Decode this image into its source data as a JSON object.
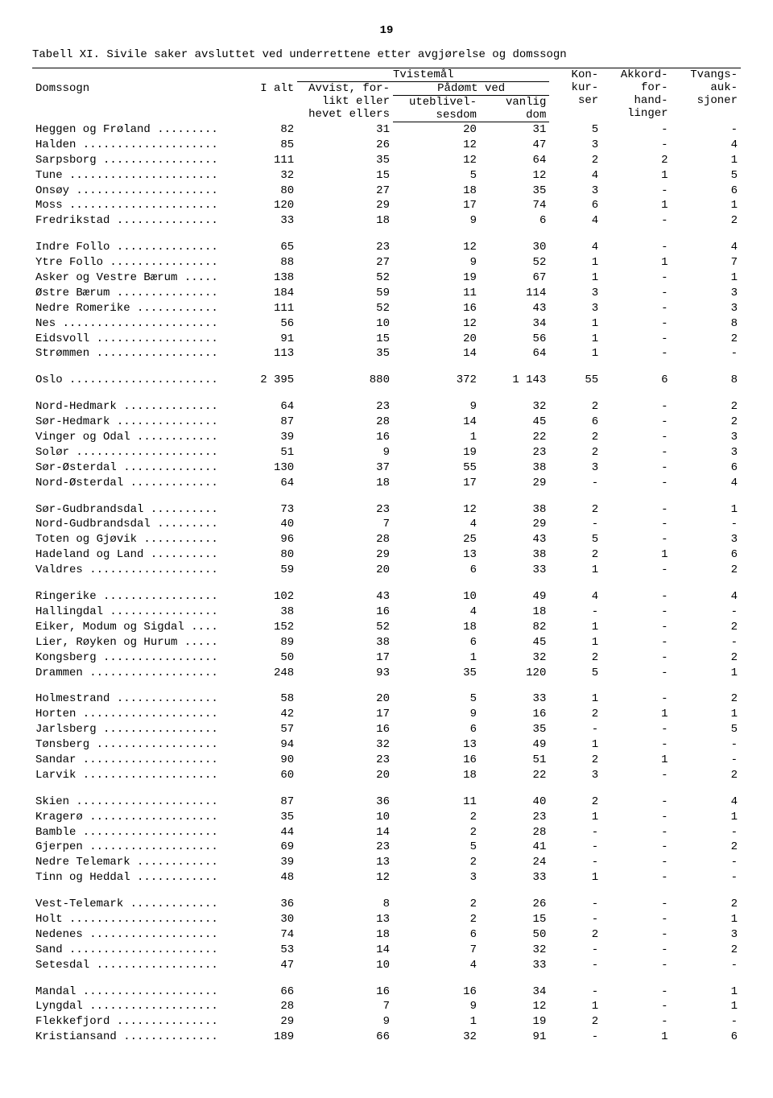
{
  "page_number": "19",
  "title": "Tabell XI.  Sivile saker avsluttet ved underrettene etter avgjørelse og domssogn",
  "headers": {
    "domssogn": "Domssogn",
    "i_alt": "I alt",
    "tvistemal": "Tvistemål",
    "avvist": "Avvist, for-\nlikt eller\nhevet ellers",
    "padomt_ved": "Pådømt ved",
    "utebliv": "uteblivel-\nsesdom",
    "vanlig": "vanlig\ndom",
    "konkurser": "Kon-\nkur-\nser",
    "akkord": "Akkord-\nfor-\nhand-\nlinger",
    "tvangs": "Tvangs-\nauk-\nsjoner"
  },
  "groups": [
    [
      {
        "name": "Heggen og Frøland",
        "v": [
          "82",
          "31",
          "20",
          "31",
          "5",
          "-",
          "-"
        ]
      },
      {
        "name": "Halden",
        "v": [
          "85",
          "26",
          "12",
          "47",
          "3",
          "-",
          "4"
        ]
      },
      {
        "name": "Sarpsborg",
        "v": [
          "111",
          "35",
          "12",
          "64",
          "2",
          "2",
          "1"
        ]
      },
      {
        "name": "Tune",
        "v": [
          "32",
          "15",
          "5",
          "12",
          "4",
          "1",
          "5"
        ]
      },
      {
        "name": "Onsøy",
        "v": [
          "80",
          "27",
          "18",
          "35",
          "3",
          "-",
          "6"
        ]
      },
      {
        "name": "Moss",
        "v": [
          "120",
          "29",
          "17",
          "74",
          "6",
          "1",
          "1"
        ]
      },
      {
        "name": "Fredrikstad",
        "v": [
          "33",
          "18",
          "9",
          "6",
          "4",
          "-",
          "2"
        ]
      }
    ],
    [
      {
        "name": "Indre Follo",
        "v": [
          "65",
          "23",
          "12",
          "30",
          "4",
          "-",
          "4"
        ]
      },
      {
        "name": "Ytre Follo",
        "v": [
          "88",
          "27",
          "9",
          "52",
          "1",
          "1",
          "7"
        ]
      },
      {
        "name": "Asker og Vestre Bærum",
        "v": [
          "138",
          "52",
          "19",
          "67",
          "1",
          "-",
          "1"
        ]
      },
      {
        "name": "Østre Bærum",
        "v": [
          "184",
          "59",
          "11",
          "114",
          "3",
          "-",
          "3"
        ]
      },
      {
        "name": "Nedre Romerike",
        "v": [
          "111",
          "52",
          "16",
          "43",
          "3",
          "-",
          "3"
        ]
      },
      {
        "name": "Nes",
        "v": [
          "56",
          "10",
          "12",
          "34",
          "1",
          "-",
          "8"
        ]
      },
      {
        "name": "Eidsvoll",
        "v": [
          "91",
          "15",
          "20",
          "56",
          "1",
          "-",
          "2"
        ]
      },
      {
        "name": "Strømmen",
        "v": [
          "113",
          "35",
          "14",
          "64",
          "1",
          "-",
          "-"
        ]
      }
    ],
    [
      {
        "name": "Oslo",
        "v": [
          "2 395",
          "880",
          "372",
          "1 143",
          "55",
          "6",
          "8"
        ]
      }
    ],
    [
      {
        "name": "Nord-Hedmark",
        "v": [
          "64",
          "23",
          "9",
          "32",
          "2",
          "-",
          "2"
        ]
      },
      {
        "name": "Sør-Hedmark",
        "v": [
          "87",
          "28",
          "14",
          "45",
          "6",
          "-",
          "2"
        ]
      },
      {
        "name": "Vinger og Odal",
        "v": [
          "39",
          "16",
          "1",
          "22",
          "2",
          "-",
          "3"
        ]
      },
      {
        "name": "Solør",
        "v": [
          "51",
          "9",
          "19",
          "23",
          "2",
          "-",
          "3"
        ]
      },
      {
        "name": "Sør-Østerdal",
        "v": [
          "130",
          "37",
          "55",
          "38",
          "3",
          "-",
          "6"
        ]
      },
      {
        "name": "Nord-Østerdal",
        "v": [
          "64",
          "18",
          "17",
          "29",
          "-",
          "-",
          "4"
        ]
      }
    ],
    [
      {
        "name": "Sør-Gudbrandsdal",
        "v": [
          "73",
          "23",
          "12",
          "38",
          "2",
          "-",
          "1"
        ]
      },
      {
        "name": "Nord-Gudbrandsdal",
        "v": [
          "40",
          "7",
          "4",
          "29",
          "-",
          "-",
          "-"
        ]
      },
      {
        "name": "Toten og Gjøvik",
        "v": [
          "96",
          "28",
          "25",
          "43",
          "5",
          "-",
          "3"
        ]
      },
      {
        "name": "Hadeland og Land",
        "v": [
          "80",
          "29",
          "13",
          "38",
          "2",
          "1",
          "6"
        ]
      },
      {
        "name": "Valdres",
        "v": [
          "59",
          "20",
          "6",
          "33",
          "1",
          "-",
          "2"
        ]
      }
    ],
    [
      {
        "name": "Ringerike",
        "v": [
          "102",
          "43",
          "10",
          "49",
          "4",
          "-",
          "4"
        ]
      },
      {
        "name": "Hallingdal",
        "v": [
          "38",
          "16",
          "4",
          "18",
          "-",
          "-",
          "-"
        ]
      },
      {
        "name": "Eiker, Modum og Sigdal",
        "v": [
          "152",
          "52",
          "18",
          "82",
          "1",
          "-",
          "2"
        ]
      },
      {
        "name": "Lier, Røyken og Hurum",
        "v": [
          "89",
          "38",
          "6",
          "45",
          "1",
          "-",
          "-"
        ]
      },
      {
        "name": "Kongsberg",
        "v": [
          "50",
          "17",
          "1",
          "32",
          "2",
          "-",
          "2"
        ]
      },
      {
        "name": "Drammen",
        "v": [
          "248",
          "93",
          "35",
          "120",
          "5",
          "-",
          "1"
        ]
      }
    ],
    [
      {
        "name": "Holmestrand",
        "v": [
          "58",
          "20",
          "5",
          "33",
          "1",
          "-",
          "2"
        ]
      },
      {
        "name": "Horten",
        "v": [
          "42",
          "17",
          "9",
          "16",
          "2",
          "1",
          "1"
        ]
      },
      {
        "name": "Jarlsberg",
        "v": [
          "57",
          "16",
          "6",
          "35",
          "-",
          "-",
          "5"
        ]
      },
      {
        "name": "Tønsberg",
        "v": [
          "94",
          "32",
          "13",
          "49",
          "1",
          "-",
          "-"
        ]
      },
      {
        "name": "Sandar",
        "v": [
          "90",
          "23",
          "16",
          "51",
          "2",
          "1",
          "-"
        ]
      },
      {
        "name": "Larvik",
        "v": [
          "60",
          "20",
          "18",
          "22",
          "3",
          "-",
          "2"
        ]
      }
    ],
    [
      {
        "name": "Skien",
        "v": [
          "87",
          "36",
          "11",
          "40",
          "2",
          "-",
          "4"
        ]
      },
      {
        "name": "Kragerø",
        "v": [
          "35",
          "10",
          "2",
          "23",
          "1",
          "-",
          "1"
        ]
      },
      {
        "name": "Bamble",
        "v": [
          "44",
          "14",
          "2",
          "28",
          "-",
          "-",
          "-"
        ]
      },
      {
        "name": "Gjerpen",
        "v": [
          "69",
          "23",
          "5",
          "41",
          "-",
          "-",
          "2"
        ]
      },
      {
        "name": "Nedre Telemark",
        "v": [
          "39",
          "13",
          "2",
          "24",
          "-",
          "-",
          "-"
        ]
      },
      {
        "name": "Tinn og Heddal",
        "v": [
          "48",
          "12",
          "3",
          "33",
          "1",
          "-",
          "-"
        ]
      }
    ],
    [
      {
        "name": "Vest-Telemark",
        "v": [
          "36",
          "8",
          "2",
          "26",
          "-",
          "-",
          "2"
        ]
      },
      {
        "name": "Holt",
        "v": [
          "30",
          "13",
          "2",
          "15",
          "-",
          "-",
          "1"
        ]
      },
      {
        "name": "Nedenes",
        "v": [
          "74",
          "18",
          "6",
          "50",
          "2",
          "-",
          "3"
        ]
      },
      {
        "name": "Sand",
        "v": [
          "53",
          "14",
          "7",
          "32",
          "-",
          "-",
          "2"
        ]
      },
      {
        "name": "Setesdal",
        "v": [
          "47",
          "10",
          "4",
          "33",
          "-",
          "-",
          "-"
        ]
      }
    ],
    [
      {
        "name": "Mandal",
        "v": [
          "66",
          "16",
          "16",
          "34",
          "-",
          "-",
          "1"
        ]
      },
      {
        "name": "Lyngdal",
        "v": [
          "28",
          "7",
          "9",
          "12",
          "1",
          "-",
          "1"
        ]
      },
      {
        "name": "Flekkefjord",
        "v": [
          "29",
          "9",
          "1",
          "19",
          "2",
          "-",
          "-"
        ]
      },
      {
        "name": "Kristiansand",
        "v": [
          "189",
          "66",
          "32",
          "91",
          "-",
          "1",
          "6"
        ]
      }
    ]
  ],
  "col_widths": [
    "210",
    "70",
    "110",
    "100",
    "80",
    "60",
    "80",
    "80"
  ]
}
